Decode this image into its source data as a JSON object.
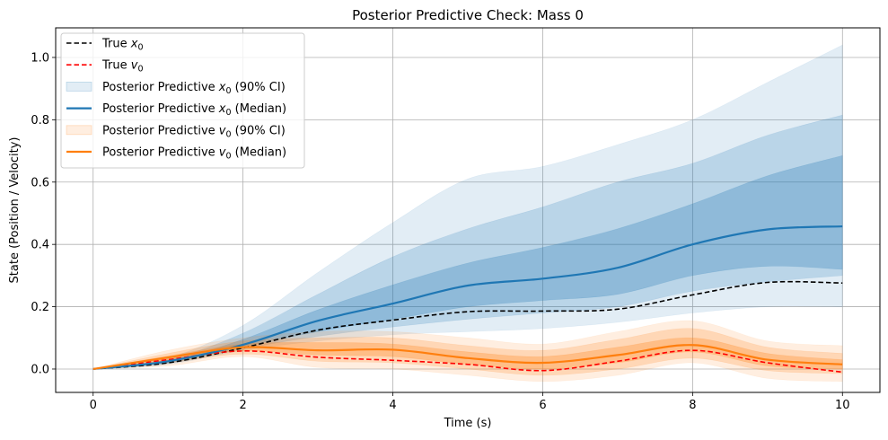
{
  "chart_data": {
    "type": "line",
    "title": "Posterior Predictive Check: Mass 0",
    "xlabel": "Time (s)",
    "ylabel": "State (Position / Velocity)",
    "xlim": [
      -0.5,
      10.5
    ],
    "ylim": [
      -0.075,
      1.095
    ],
    "xticks": [
      0,
      2,
      4,
      6,
      8,
      10
    ],
    "xtick_labels": [
      "0",
      "2",
      "4",
      "6",
      "8",
      "10"
    ],
    "yticks": [
      0.0,
      0.2,
      0.4,
      0.6,
      0.8,
      1.0
    ],
    "ytick_labels": [
      "0.0",
      "0.2",
      "0.4",
      "0.6",
      "0.8",
      "1.0"
    ],
    "grid": true,
    "legend_position": "upper-left",
    "x": [
      0,
      1,
      2,
      3,
      4,
      5,
      6,
      7,
      8,
      9,
      10
    ],
    "series": [
      {
        "key": "true_x",
        "name": "True x0",
        "legend_main": "True x",
        "legend_sub": "0",
        "legend_suffix": "",
        "kind": "line",
        "style": "dashed",
        "color": "#000000",
        "values": [
          0.0,
          0.02,
          0.068,
          0.125,
          0.157,
          0.184,
          0.186,
          0.192,
          0.238,
          0.278,
          0.276
        ]
      },
      {
        "key": "true_v",
        "name": "True v0",
        "legend_main": "True v",
        "legend_sub": "0",
        "legend_suffix": "",
        "kind": "line",
        "style": "dashed",
        "color": "#ff0000",
        "values": [
          0.0,
          0.03,
          0.058,
          0.038,
          0.028,
          0.015,
          -0.005,
          0.025,
          0.06,
          0.02,
          -0.01
        ]
      },
      {
        "key": "x_ci",
        "name": "Posterior Predictive x0 (90% CI)",
        "legend_main": "Posterior Predictive x",
        "legend_sub": "0",
        "legend_suffix": " (90% CI)",
        "kind": "band",
        "color": "#1f77b4",
        "bands": [
          {
            "opacity": 0.13,
            "lower": [
              0.0,
              0.015,
              0.06,
              0.09,
              0.11,
              0.12,
              0.13,
              0.15,
              0.18,
              0.2,
              0.2
            ],
            "upper": [
              0.0,
              0.035,
              0.14,
              0.31,
              0.47,
              0.61,
              0.65,
              0.72,
              0.8,
              0.92,
              1.04
            ]
          },
          {
            "opacity": 0.2,
            "lower": [
              0.0,
              0.018,
              0.065,
              0.105,
              0.135,
              0.16,
              0.18,
              0.2,
              0.25,
              0.28,
              0.3
            ],
            "upper": [
              0.0,
              0.03,
              0.115,
              0.24,
              0.36,
              0.45,
              0.52,
              0.6,
              0.66,
              0.75,
              0.815
            ]
          },
          {
            "opacity": 0.28,
            "lower": [
              0.0,
              0.02,
              0.072,
              0.12,
              0.16,
              0.2,
              0.22,
              0.24,
              0.3,
              0.33,
              0.32
            ],
            "upper": [
              0.0,
              0.026,
              0.095,
              0.19,
              0.27,
              0.34,
              0.39,
              0.45,
              0.53,
              0.62,
              0.685
            ]
          }
        ]
      },
      {
        "key": "x_median",
        "name": "Posterior Predictive x0 (Median)",
        "legend_main": "Posterior Predictive x",
        "legend_sub": "0",
        "legend_suffix": " (Median)",
        "kind": "line",
        "style": "solid",
        "color": "#1f77b4",
        "values": [
          0.0,
          0.025,
          0.078,
          0.155,
          0.21,
          0.268,
          0.29,
          0.325,
          0.4,
          0.448,
          0.458
        ]
      },
      {
        "key": "v_ci",
        "name": "Posterior Predictive v0 (90% CI)",
        "legend_main": "Posterior Predictive v",
        "legend_sub": "0",
        "legend_suffix": " (90% CI)",
        "kind": "band",
        "color": "#ff7f0e",
        "bands": [
          {
            "opacity": 0.13,
            "lower": [
              0.0,
              0.01,
              0.04,
              0.005,
              0.0,
              -0.02,
              -0.04,
              -0.02,
              0.02,
              -0.03,
              -0.04
            ],
            "upper": [
              0.0,
              0.06,
              0.1,
              0.12,
              0.12,
              0.1,
              0.08,
              0.12,
              0.155,
              0.09,
              0.075
            ]
          },
          {
            "opacity": 0.2,
            "lower": [
              0.0,
              0.02,
              0.048,
              0.025,
              0.02,
              0.0,
              -0.02,
              0.0,
              0.035,
              -0.005,
              -0.015
            ],
            "upper": [
              0.0,
              0.05,
              0.09,
              0.1,
              0.1,
              0.075,
              0.06,
              0.095,
              0.13,
              0.07,
              0.05
            ]
          },
          {
            "opacity": 0.28,
            "lower": [
              0.0,
              0.028,
              0.058,
              0.045,
              0.04,
              0.015,
              0.0,
              0.02,
              0.055,
              0.01,
              0.0
            ],
            "upper": [
              0.0,
              0.042,
              0.08,
              0.085,
              0.08,
              0.055,
              0.04,
              0.07,
              0.1,
              0.05,
              0.03
            ]
          }
        ]
      },
      {
        "key": "v_median",
        "name": "Posterior Predictive v0 (Median)",
        "legend_main": "Posterior Predictive v",
        "legend_sub": "0",
        "legend_suffix": " (Median)",
        "kind": "line",
        "style": "solid",
        "color": "#ff7f0e",
        "values": [
          0.0,
          0.037,
          0.07,
          0.06,
          0.062,
          0.035,
          0.02,
          0.045,
          0.077,
          0.03,
          0.015
        ]
      }
    ]
  }
}
